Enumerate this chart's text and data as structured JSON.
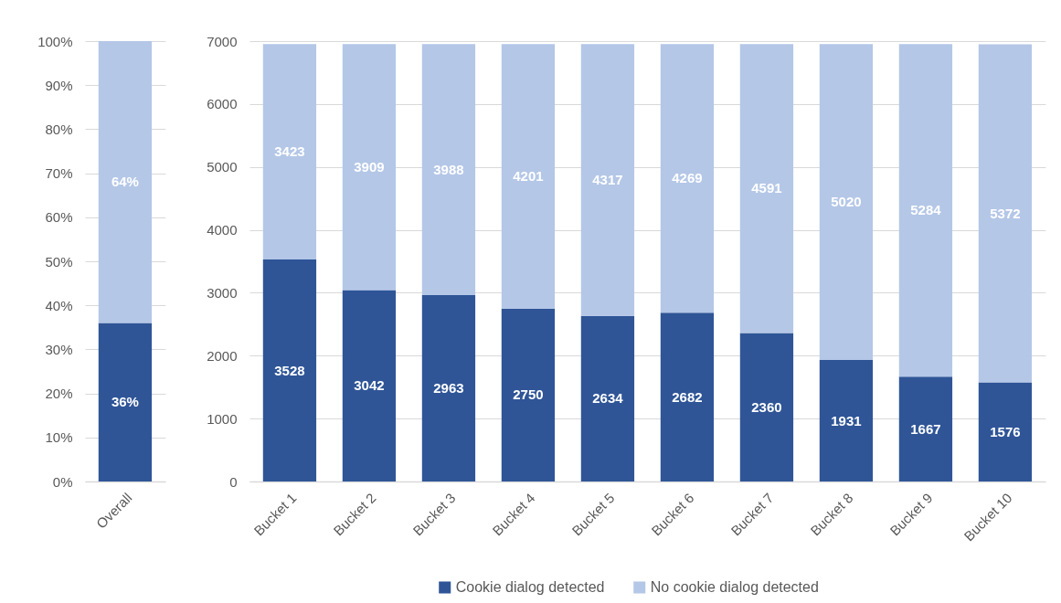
{
  "chart_data": [
    {
      "type": "bar",
      "stacked": true,
      "categories": [
        "Overall"
      ],
      "series": [
        {
          "color": "#2f5597",
          "values": [
            36
          ],
          "value_labels": [
            "36%"
          ]
        },
        {
          "color": "#b4c7e7",
          "values": [
            64
          ],
          "value_labels": [
            "64%"
          ]
        }
      ],
      "ylim": [
        0,
        100
      ],
      "yticks": [
        {
          "value": 0,
          "label": "0%"
        },
        {
          "value": 10,
          "label": "10%"
        },
        {
          "value": 20,
          "label": "20%"
        },
        {
          "value": 30,
          "label": "30%"
        },
        {
          "value": 40,
          "label": "40%"
        },
        {
          "value": 50,
          "label": "50%"
        },
        {
          "value": 60,
          "label": "60%"
        },
        {
          "value": 70,
          "label": "70%"
        },
        {
          "value": 80,
          "label": "80%"
        },
        {
          "value": 90,
          "label": "90%"
        },
        {
          "value": 100,
          "label": "100%"
        }
      ],
      "grid": "y"
    },
    {
      "type": "bar",
      "stacked": true,
      "categories": [
        "Bucket 1",
        "Bucket 2",
        "Bucket 3",
        "Bucket 4",
        "Bucket 5",
        "Bucket 6",
        "Bucket 7",
        "Bucket 8",
        "Bucket 9",
        "Bucket 10"
      ],
      "series": [
        {
          "name": "Cookie dialog detected",
          "color": "#2f5597",
          "values": [
            3528,
            3042,
            2963,
            2750,
            2634,
            2682,
            2360,
            1931,
            1667,
            1576
          ]
        },
        {
          "name": "No cookie dialog detected",
          "color": "#b4c7e7",
          "values": [
            3423,
            3909,
            3988,
            4201,
            4317,
            4269,
            4591,
            5020,
            5284,
            5372
          ]
        }
      ],
      "ylim": [
        0,
        7000
      ],
      "yticks": [
        0,
        1000,
        2000,
        3000,
        4000,
        5000,
        6000,
        7000
      ],
      "grid": "y",
      "legend": "bottom",
      "data_labels": true
    }
  ]
}
